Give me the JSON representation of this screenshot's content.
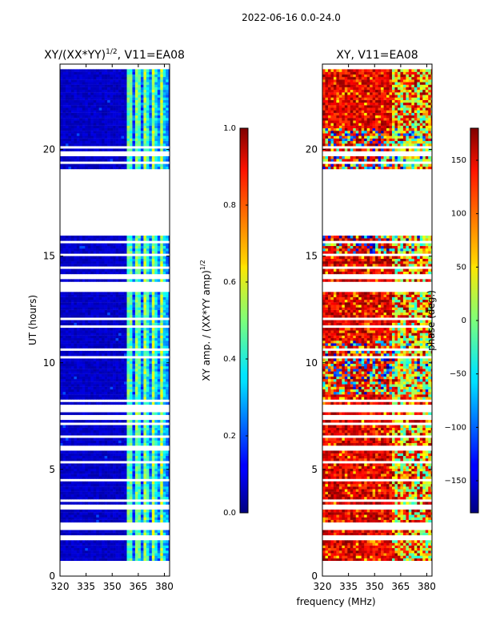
{
  "figure": {
    "suptitle": "2022-06-16 0.0-24.0",
    "shared_xlabel": "frequency (MHz)"
  },
  "chart_data": [
    {
      "type": "heatmap",
      "title_main": "XY/(XX*YY)",
      "title_sup": "1/2",
      "title_tail": ", V11=EA08",
      "xlabel": "",
      "ylabel": "UT (hours)",
      "xlim": [
        320,
        383
      ],
      "ylim": [
        0,
        24
      ],
      "xticks": [
        320,
        335,
        350,
        365,
        380
      ],
      "xtick_labels": [
        "320",
        "335",
        "350",
        "365",
        "380"
      ],
      "yticks": [
        0,
        5,
        10,
        15,
        20
      ],
      "ytick_labels": [
        "0",
        "5",
        "10",
        "15",
        "20"
      ],
      "colormap": "jet",
      "note": "low amplitude (~0.0-0.1) below 360 MHz; higher amplitude (~0.2-0.6) in 360-380 MHz stripes; no data 16.0-19.0 h",
      "data_gaps_hours": [
        [
          0.05,
          0.62
        ],
        [
          16.0,
          19.0
        ]
      ],
      "colorbar": {
        "label_main": "XY amp. / (XX*YY amp)",
        "label_sup": "1/2",
        "range": [
          0.0,
          1.0
        ],
        "ticks": [
          0.0,
          0.2,
          0.4,
          0.6,
          0.8,
          1.0
        ],
        "tick_labels": [
          "0.0",
          "0.2",
          "0.4",
          "0.6",
          "0.8",
          "1.0"
        ]
      }
    },
    {
      "type": "heatmap",
      "title_main": "XY, V11=EA08",
      "xlabel": "",
      "ylabel": "",
      "xlim": [
        320,
        383
      ],
      "ylim": [
        0,
        24
      ],
      "xticks": [
        320,
        335,
        350,
        365,
        380
      ],
      "xtick_labels": [
        "320",
        "335",
        "350",
        "365",
        "380"
      ],
      "yticks": [
        0,
        5,
        10,
        15,
        20
      ],
      "ytick_labels": [
        "0",
        "5",
        "10",
        "15",
        "20"
      ],
      "colormap": "jet",
      "note": "phase mostly +50 to +180 deg, mixed values in 15-20 h and near 9-11 h",
      "data_gaps_hours": [
        [
          0.05,
          0.62
        ],
        [
          16.0,
          19.0
        ]
      ],
      "colorbar": {
        "label_main": "phase (deg.)",
        "range": [
          -180,
          180
        ],
        "ticks": [
          -150,
          -100,
          -50,
          0,
          50,
          100,
          150
        ],
        "tick_labels": [
          "−150",
          "−100",
          "−50",
          "0",
          "50",
          "100",
          "150"
        ]
      }
    }
  ]
}
